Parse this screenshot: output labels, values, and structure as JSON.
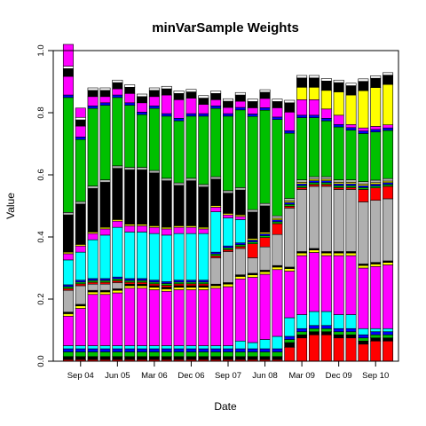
{
  "chart_data": {
    "type": "bar",
    "stacked": true,
    "title": "minVarSample Weights",
    "xlabel": "Date",
    "ylabel": "Value",
    "ylim": [
      0,
      1
    ],
    "y_ticks": [
      "0.0",
      "0.2",
      "0.4",
      "0.6",
      "0.8",
      "1.0"
    ],
    "x_tick_labels": [
      "Sep 04",
      "Jun 05",
      "Mar 06",
      "Dec 06",
      "Sep 07",
      "Jun 08",
      "Mar 09",
      "Dec 09",
      "Sep 10"
    ],
    "x_tick_positions": [
      1.5,
      4.5,
      7.5,
      10.5,
      13.5,
      16.5,
      19.5,
      22.5,
      25.5
    ],
    "categories": [
      "1",
      "2",
      "3",
      "4",
      "5",
      "6",
      "7",
      "8",
      "9",
      "10",
      "11",
      "12",
      "13",
      "14",
      "15",
      "16",
      "17",
      "18",
      "19",
      "20",
      "21",
      "22",
      "23",
      "24",
      "25",
      "26",
      "27"
    ],
    "series": [
      {
        "color": "#ff0000",
        "values": [
          0.005,
          0.005,
          0.005,
          0.005,
          0.005,
          0.005,
          0.005,
          0.005,
          0.005,
          0.005,
          0.005,
          0.005,
          0.005,
          0.005,
          0.005,
          0.005,
          0.005,
          0.005,
          0.045,
          0.075,
          0.085,
          0.085,
          0.075,
          0.075,
          0.055,
          0.065,
          0.065
        ]
      },
      {
        "color": "#000000",
        "values": [
          0.01,
          0.01,
          0.01,
          0.01,
          0.01,
          0.01,
          0.01,
          0.01,
          0.01,
          0.01,
          0.01,
          0.01,
          0.01,
          0.01,
          0.01,
          0.01,
          0.01,
          0.01,
          0.015,
          0.01,
          0.01,
          0.01,
          0.01,
          0.01,
          0.01,
          0.01,
          0.01
        ]
      },
      {
        "color": "#00c000",
        "values": [
          0.015,
          0.015,
          0.015,
          0.015,
          0.015,
          0.015,
          0.015,
          0.015,
          0.015,
          0.015,
          0.015,
          0.015,
          0.015,
          0.015,
          0.015,
          0.015,
          0.015,
          0.015,
          0.01,
          0.01,
          0.01,
          0.01,
          0.01,
          0.01,
          0.01,
          0.01,
          0.01
        ]
      },
      {
        "color": "#0000ff",
        "values": [
          0.01,
          0.01,
          0.01,
          0.01,
          0.01,
          0.01,
          0.01,
          0.01,
          0.01,
          0.01,
          0.01,
          0.01,
          0.01,
          0.01,
          0.01,
          0.01,
          0.01,
          0.01,
          0.01,
          0.01,
          0.01,
          0.01,
          0.01,
          0.01,
          0.01,
          0.01,
          0.01
        ]
      },
      {
        "color": "#00ffff",
        "values": [
          0.01,
          0.01,
          0.01,
          0.01,
          0.01,
          0.01,
          0.01,
          0.01,
          0.01,
          0.01,
          0.01,
          0.01,
          0.01,
          0.01,
          0.025,
          0.02,
          0.03,
          0.04,
          0.06,
          0.045,
          0.045,
          0.045,
          0.045,
          0.045,
          0.02,
          0.01,
          0.01
        ]
      },
      {
        "color": "#ff00ff",
        "values": [
          0.095,
          0.12,
          0.165,
          0.165,
          0.17,
          0.185,
          0.185,
          0.18,
          0.175,
          0.18,
          0.18,
          0.18,
          0.185,
          0.19,
          0.2,
          0.21,
          0.21,
          0.215,
          0.15,
          0.19,
          0.19,
          0.18,
          0.19,
          0.19,
          0.195,
          0.2,
          0.205
        ]
      },
      {
        "color": "#ffff00",
        "values": [
          0.008,
          0.008,
          0.008,
          0.008,
          0.008,
          0.008,
          0.008,
          0.008,
          0.008,
          0.008,
          0.008,
          0.008,
          0.008,
          0.008,
          0.008,
          0.008,
          0.008,
          0.008,
          0.008,
          0.008,
          0.008,
          0.008,
          0.008,
          0.008,
          0.008,
          0.008,
          0.008
        ]
      },
      {
        "color": "#000000",
        "values": [
          0.005,
          0.005,
          0.005,
          0.005,
          0.005,
          0.005,
          0.005,
          0.005,
          0.005,
          0.005,
          0.005,
          0.005,
          0.005,
          0.005,
          0.005,
          0.005,
          0.005,
          0.005,
          0.005,
          0.005,
          0.005,
          0.005,
          0.005,
          0.005,
          0.005,
          0.005,
          0.005
        ]
      },
      {
        "color": "#b0b0b0",
        "values": [
          0.07,
          0.06,
          0.02,
          0.02,
          0.02,
          0.0,
          0.0,
          0.0,
          0.0,
          0.0,
          0.0,
          0.0,
          0.085,
          0.1,
          0.085,
          0.05,
          0.075,
          0.1,
          0.19,
          0.2,
          0.2,
          0.21,
          0.2,
          0.2,
          0.2,
          0.2,
          0.2
        ]
      },
      {
        "color": "#ff0000",
        "values": [
          0.006,
          0.006,
          0.006,
          0.006,
          0.006,
          0.006,
          0.006,
          0.006,
          0.006,
          0.006,
          0.006,
          0.006,
          0.006,
          0.006,
          0.006,
          0.045,
          0.03,
          0.035,
          0.006,
          0.006,
          0.006,
          0.006,
          0.006,
          0.006,
          0.04,
          0.04,
          0.04
        ]
      },
      {
        "color": "#00c000",
        "values": [
          0.006,
          0.006,
          0.006,
          0.006,
          0.006,
          0.006,
          0.006,
          0.006,
          0.006,
          0.006,
          0.006,
          0.006,
          0.006,
          0.006,
          0.006,
          0.006,
          0.006,
          0.006,
          0.006,
          0.006,
          0.006,
          0.006,
          0.006,
          0.006,
          0.006,
          0.006,
          0.006
        ]
      },
      {
        "color": "#0000ff",
        "values": [
          0.006,
          0.006,
          0.006,
          0.006,
          0.006,
          0.006,
          0.006,
          0.006,
          0.006,
          0.006,
          0.006,
          0.006,
          0.006,
          0.006,
          0.006,
          0.006,
          0.006,
          0.006,
          0.006,
          0.006,
          0.006,
          0.006,
          0.006,
          0.006,
          0.006,
          0.006,
          0.006
        ]
      },
      {
        "color": "#00ffff",
        "values": [
          0.08,
          0.09,
          0.125,
          0.14,
          0.16,
          0.15,
          0.15,
          0.15,
          0.15,
          0.15,
          0.15,
          0.15,
          0.13,
          0.09,
          0.075,
          0.0,
          0.0,
          0.0,
          0.0,
          0.0,
          0.0,
          0.0,
          0.0,
          0.0,
          0.0,
          0.0,
          0.0
        ]
      },
      {
        "color": "#ff00ff",
        "values": [
          0.02,
          0.02,
          0.02,
          0.02,
          0.02,
          0.02,
          0.02,
          0.02,
          0.02,
          0.02,
          0.02,
          0.015,
          0.015,
          0.01,
          0.01,
          0.0,
          0.0,
          0.0,
          0.0,
          0.0,
          0.0,
          0.0,
          0.0,
          0.0,
          0.0,
          0.0,
          0.0
        ]
      },
      {
        "color": "#ffff00",
        "values": [
          0.005,
          0.005,
          0.005,
          0.005,
          0.005,
          0.005,
          0.005,
          0.005,
          0.005,
          0.005,
          0.005,
          0.005,
          0.005,
          0.005,
          0.005,
          0.005,
          0.005,
          0.005,
          0.005,
          0.005,
          0.005,
          0.005,
          0.005,
          0.005,
          0.005,
          0.005,
          0.005
        ]
      },
      {
        "color": "#000000",
        "values": [
          0.12,
          0.13,
          0.14,
          0.145,
          0.165,
          0.175,
          0.175,
          0.17,
          0.15,
          0.13,
          0.145,
          0.13,
          0.085,
          0.065,
          0.08,
          0.085,
          0.085,
          0.0,
          0.0,
          0.0,
          0.0,
          0.0,
          0.0,
          0.0,
          0.0,
          0.0,
          0.0
        ]
      },
      {
        "color": "#b0b0b0",
        "values": [
          0.008,
          0.008,
          0.008,
          0.008,
          0.008,
          0.008,
          0.008,
          0.008,
          0.008,
          0.008,
          0.008,
          0.008,
          0.008,
          0.008,
          0.008,
          0.008,
          0.008,
          0.008,
          0.008,
          0.008,
          0.008,
          0.008,
          0.008,
          0.008,
          0.008,
          0.008,
          0.008
        ]
      },
      {
        "color": "#00c000",
        "values": [
          0.37,
          0.2,
          0.25,
          0.24,
          0.22,
          0.2,
          0.17,
          0.2,
          0.2,
          0.2,
          0.2,
          0.22,
          0.22,
          0.24,
          0.25,
          0.3,
          0.3,
          0.31,
          0.21,
          0.2,
          0.19,
          0.18,
          0.17,
          0.16,
          0.155,
          0.155,
          0.155
        ]
      },
      {
        "color": "#0000ff",
        "values": [
          0.008,
          0.008,
          0.008,
          0.008,
          0.008,
          0.008,
          0.008,
          0.008,
          0.008,
          0.008,
          0.008,
          0.008,
          0.008,
          0.008,
          0.008,
          0.008,
          0.008,
          0.008,
          0.008,
          0.008,
          0.008,
          0.008,
          0.008,
          0.008,
          0.008,
          0.008,
          0.008
        ]
      },
      {
        "color": "#ff00ff",
        "values": [
          0.06,
          0.035,
          0.03,
          0.02,
          0.02,
          0.03,
          0.03,
          0.03,
          0.06,
          0.06,
          0.05,
          0.03,
          0.02,
          0.02,
          0.02,
          0.02,
          0.03,
          0.03,
          0.06,
          0.05,
          0.05,
          0.03,
          0.03,
          0.01,
          0.01,
          0.01,
          0.01
        ]
      },
      {
        "color": "#ffff00",
        "values": [
          0.0,
          0.0,
          0.0,
          0.0,
          0.0,
          0.0,
          0.0,
          0.0,
          0.0,
          0.0,
          0.0,
          0.0,
          0.0,
          0.0,
          0.0,
          0.0,
          0.0,
          0.0,
          0.0,
          0.04,
          0.04,
          0.06,
          0.075,
          0.095,
          0.12,
          0.125,
          0.13
        ]
      },
      {
        "color": "#000000",
        "values": [
          0.025,
          0.02,
          0.02,
          0.02,
          0.02,
          0.02,
          0.02,
          0.02,
          0.02,
          0.02,
          0.02,
          0.02,
          0.02,
          0.02,
          0.02,
          0.02,
          0.02,
          0.02,
          0.03,
          0.03,
          0.03,
          0.03,
          0.03,
          0.03,
          0.03,
          0.03,
          0.03
        ]
      },
      {
        "color": "#ffffff",
        "values": [
          0.008,
          0.008,
          0.008,
          0.008,
          0.008,
          0.008,
          0.008,
          0.008,
          0.008,
          0.008,
          0.008,
          0.008,
          0.008,
          0.008,
          0.008,
          0.008,
          0.008,
          0.008,
          0.008,
          0.008,
          0.008,
          0.008,
          0.008,
          0.008,
          0.008,
          0.008,
          0.008
        ]
      },
      {
        "color": "#ff00ff",
        "values": [
          0.07,
          0.03,
          0.0,
          0.0,
          0.0,
          0.0,
          0.0,
          0.0,
          0.0,
          0.0,
          0.0,
          0.0,
          0.0,
          0.0,
          0.0,
          0.0,
          0.0,
          0.0,
          0.0,
          0.0,
          0.0,
          0.0,
          0.0,
          0.0,
          0.0,
          0.0,
          0.0
        ]
      }
    ]
  }
}
